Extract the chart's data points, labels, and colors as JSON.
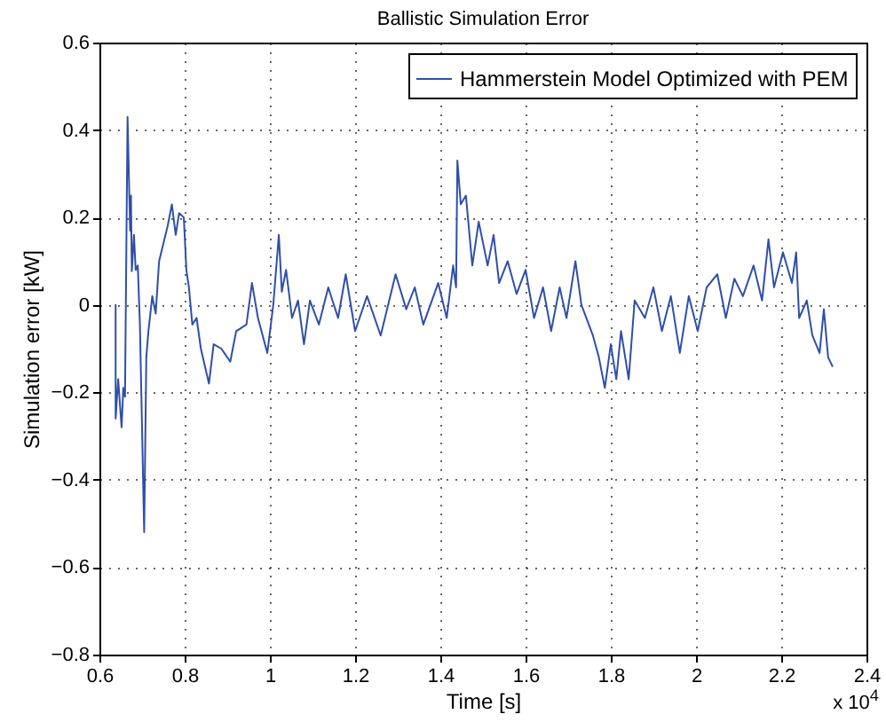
{
  "chart_data": {
    "type": "line",
    "title": "Ballistic Simulation Error",
    "xlabel": "Time [s]",
    "ylabel": "Simulation error [kW]",
    "annotations": [
      "x 10$^{4}$"
    ],
    "xlim": [
      0.6,
      2.4
    ],
    "xticks": [
      0.6,
      0.8,
      1,
      1.2,
      1.4,
      1.6,
      1.8,
      2,
      2.2,
      2.4
    ],
    "ylim": [
      -0.8,
      0.6
    ],
    "yticks": [
      -0.8,
      -0.6,
      -0.4,
      -0.2,
      0,
      0.2,
      0.4,
      0.6
    ],
    "grid": true,
    "legend": "top right",
    "line_style": "solid",
    "series": [
      {
        "name": "Hammerstein Model Optimized with PEM",
        "color": "#2f4fa8",
        "x": [
          0.638,
          0.638,
          0.644,
          0.652,
          0.656,
          0.66,
          0.666,
          0.672,
          0.674,
          0.676,
          0.681,
          0.685,
          0.69,
          0.695,
          0.705,
          0.71,
          0.715,
          0.724,
          0.732,
          0.74,
          0.75,
          0.76,
          0.77,
          0.779,
          0.787,
          0.798,
          0.804,
          0.81,
          0.818,
          0.828,
          0.838,
          0.857,
          0.868,
          0.886,
          0.907,
          0.921,
          0.945,
          0.958,
          0.972,
          0.994,
          1.008,
          1.021,
          1.028,
          1.038,
          1.052,
          1.066,
          1.08,
          1.094,
          1.115,
          1.137,
          1.16,
          1.178,
          1.2,
          1.228,
          1.26,
          1.295,
          1.32,
          1.34,
          1.36,
          1.395,
          1.415,
          1.43,
          1.437,
          1.44,
          1.448,
          1.46,
          1.475,
          1.49,
          1.511,
          1.525,
          1.538,
          1.558,
          1.579,
          1.6,
          1.62,
          1.641,
          1.66,
          1.68,
          1.696,
          1.717,
          1.731,
          1.758,
          1.772,
          1.786,
          1.8,
          1.813,
          1.824,
          1.842,
          1.856,
          1.88,
          1.9,
          1.92,
          1.941,
          1.962,
          1.983,
          2.004,
          2.025,
          2.05,
          2.07,
          2.09,
          2.11,
          2.135,
          2.155,
          2.17,
          2.183,
          2.204,
          2.225,
          2.235,
          2.242,
          2.26,
          2.273,
          2.29,
          2.3,
          2.31,
          2.32
        ],
        "values": [
          0,
          -0.26,
          -0.17,
          -0.28,
          -0.19,
          -0.21,
          0.43,
          0.17,
          0.25,
          0.077,
          0.16,
          0.08,
          0.09,
          -0.045,
          -0.52,
          -0.12,
          -0.06,
          0.02,
          -0.02,
          0.1,
          0.14,
          0.18,
          0.23,
          0.16,
          0.21,
          0.2,
          0.08,
          0.04,
          -0.045,
          -0.03,
          -0.1,
          -0.18,
          -0.09,
          -0.1,
          -0.13,
          -0.06,
          -0.045,
          0.05,
          -0.03,
          -0.11,
          0,
          0.16,
          0.03,
          0.08,
          -0.03,
          0.01,
          -0.09,
          0.01,
          -0.045,
          0.04,
          -0.03,
          0.07,
          -0.06,
          0.02,
          -0.07,
          0.07,
          -0.01,
          0.04,
          -0.045,
          0.05,
          -0.03,
          0.09,
          0.04,
          0.33,
          0.23,
          0.25,
          0.09,
          0.19,
          0.09,
          0.16,
          0.05,
          0.1,
          0.025,
          0.08,
          -0.03,
          0.04,
          -0.06,
          0.04,
          -0.03,
          0.1,
          0,
          -0.07,
          -0.12,
          -0.19,
          -0.09,
          -0.17,
          -0.06,
          -0.17,
          0.01,
          -0.03,
          0.04,
          -0.06,
          0.02,
          -0.11,
          0.02,
          -0.06,
          0.04,
          0.07,
          -0.03,
          0.06,
          0.02,
          0.09,
          0.01,
          0.15,
          0.04,
          0.12,
          0.05,
          0.12,
          -0.03,
          0.01,
          -0.07,
          -0.11,
          -0.01,
          -0.12,
          -0.14
        ]
      }
    ]
  }
}
